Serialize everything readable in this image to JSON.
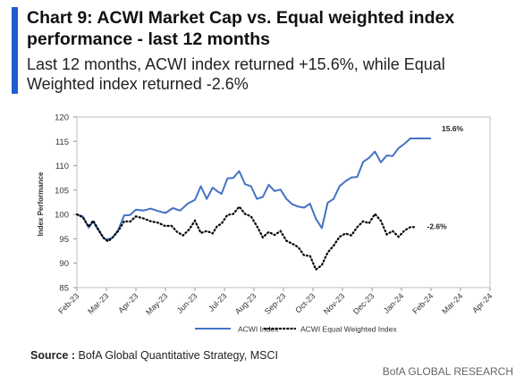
{
  "header": {
    "title": "Chart 9: ACWI Market Cap vs. Equal weighted index performance - last 12 months",
    "subtitle": "Last 12 months, ACWI index returned +15.6%, while Equal Weighted index returned -2.6%"
  },
  "colors": {
    "accent_bar": "#1f5bd1",
    "acwi_line": "#4472c4",
    "equal_line": "#000000"
  },
  "chart_data": {
    "type": "line",
    "ylabel": "Index Performance",
    "ylim": [
      85,
      120
    ],
    "yticks": [
      85,
      90,
      95,
      100,
      105,
      110,
      115,
      120
    ],
    "xlim": [
      0,
      14
    ],
    "xtick_labels": [
      "Feb-23",
      "Mar-23",
      "Apr-23",
      "May-23",
      "Jun-23",
      "Jul-23",
      "Aug-23",
      "Sep-23",
      "Oct-23",
      "Nov-23",
      "Dec-23",
      "Jan-24",
      "Feb-24",
      "Mar-24",
      "Apr-24"
    ],
    "grid": false,
    "legend_position": "bottom",
    "series": [
      {
        "name": "ACWI Index",
        "style": "solid",
        "end_label": "15.6%",
        "x": [
          0,
          0.2,
          0.4,
          0.55,
          0.7,
          0.9,
          1.0,
          1.2,
          1.4,
          1.6,
          1.8,
          2.0,
          2.25,
          2.5,
          2.75,
          3.0,
          3.25,
          3.5,
          3.75,
          4.0,
          4.2,
          4.4,
          4.6,
          4.75,
          4.9,
          5.1,
          5.3,
          5.5,
          5.7,
          5.9,
          6.1,
          6.3,
          6.5,
          6.7,
          6.9,
          7.1,
          7.3,
          7.5,
          7.7,
          7.9,
          8.1,
          8.3,
          8.5,
          8.7,
          8.9,
          9.1,
          9.3,
          9.5,
          9.7,
          9.9,
          10.1,
          10.3,
          10.5,
          10.7,
          10.9,
          11.1,
          11.3,
          11.5,
          11.7,
          11.9,
          12.0
        ],
        "y": [
          100,
          99.6,
          97.3,
          98.6,
          97,
          95.2,
          94.8,
          95.2,
          96.8,
          99.8,
          99.9,
          101,
          100.8,
          101.2,
          100.7,
          100.3,
          101.3,
          100.8,
          102.2,
          103,
          105.8,
          103.2,
          105.5,
          104.8,
          104.2,
          107.4,
          107.5,
          108.9,
          106.2,
          105.8,
          103.2,
          103.6,
          106.1,
          104.8,
          105.1,
          103.2,
          102.1,
          101.6,
          101.4,
          102.2,
          99.1,
          97.2,
          102.4,
          103.2,
          105.8,
          106.8,
          107.6,
          107.7,
          110.8,
          111.6,
          112.9,
          110.7,
          112.1,
          112,
          113.6,
          114.5,
          115.6,
          115.6,
          115.6,
          115.6,
          115.6
        ]
      },
      {
        "name": "ACWI Equal Weighted Index",
        "style": "dotted",
        "end_label": "-2.6%",
        "x": [
          0,
          0.2,
          0.4,
          0.55,
          0.7,
          0.9,
          1.05,
          1.2,
          1.4,
          1.6,
          1.8,
          2.0,
          2.25,
          2.5,
          2.75,
          3.0,
          3.2,
          3.4,
          3.6,
          3.8,
          4.0,
          4.2,
          4.4,
          4.6,
          4.75,
          4.9,
          5.1,
          5.3,
          5.5,
          5.7,
          5.9,
          6.1,
          6.3,
          6.5,
          6.7,
          6.9,
          7.1,
          7.3,
          7.5,
          7.7,
          7.9,
          8.1,
          8.3,
          8.5,
          8.7,
          8.9,
          9.1,
          9.3,
          9.5,
          9.7,
          9.9,
          10.1,
          10.3,
          10.5,
          10.7,
          10.9,
          11.1,
          11.3,
          11.5
        ],
        "y": [
          100,
          99.4,
          97.5,
          98.7,
          97.2,
          95.2,
          94.5,
          95.2,
          96.6,
          98.6,
          98.5,
          99.6,
          99.2,
          98.6,
          98.3,
          97.6,
          97.7,
          96.4,
          95.7,
          96.9,
          98.7,
          96.2,
          96.6,
          96.1,
          97.6,
          98.1,
          99.9,
          100.1,
          101.6,
          100.1,
          99.6,
          97.6,
          95.3,
          96.4,
          95.8,
          96.6,
          94.6,
          94,
          93.3,
          91.6,
          91.5,
          88.7,
          89.6,
          92.2,
          93.6,
          95.4,
          96.1,
          95.7,
          97.4,
          98.6,
          98.2,
          100.1,
          98.7,
          95.9,
          96.6,
          95.4,
          96.7,
          97.4,
          97.4
        ]
      }
    ]
  },
  "source": {
    "label": "Source :",
    "text": "BofA Global Quantitative Strategy, MSCI"
  },
  "footer": {
    "brand": "BofA GLOBAL RESEARCH"
  }
}
